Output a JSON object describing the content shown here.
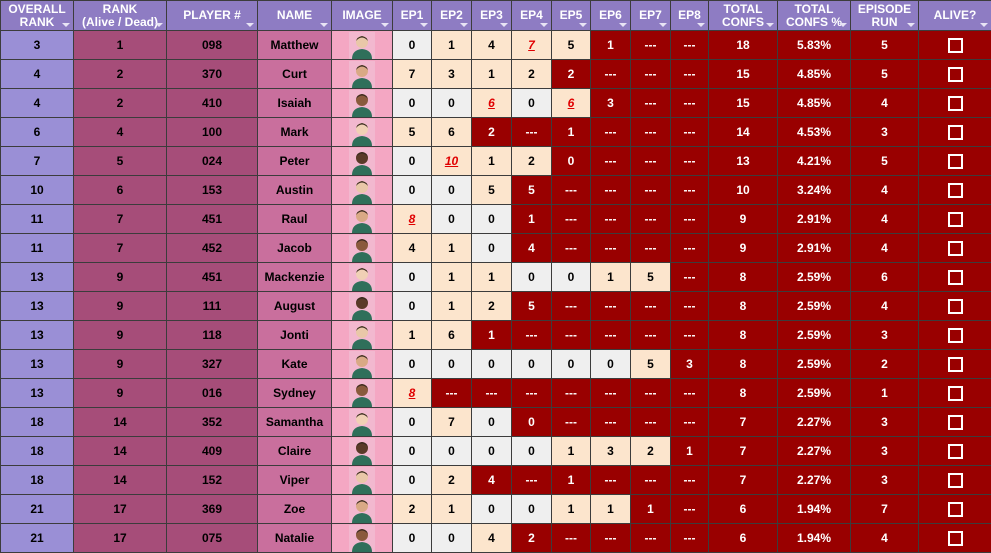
{
  "table": {
    "columns": [
      "OVERALL\nRANK",
      "RANK\n(Alive / Dead)",
      "PLAYER #",
      "NAME",
      "IMAGE",
      "EP1",
      "EP2",
      "EP3",
      "EP4",
      "EP5",
      "EP6",
      "EP7",
      "EP8",
      "TOTAL\nCONFS",
      "TOTAL\nCONFS %",
      "EPISODE\nRUN",
      "ALIVE?"
    ],
    "rows": [
      {
        "overall_rank": 3,
        "rank": 1,
        "player": "098",
        "name": "Matthew",
        "episodes": [
          0,
          1,
          4,
          7,
          5,
          1,
          "---",
          "---"
        ],
        "total_confs": 18,
        "total_confs_pct": "5.83%",
        "episode_run": 5
      },
      {
        "overall_rank": 4,
        "rank": 2,
        "player": "370",
        "name": "Curt",
        "episodes": [
          7,
          3,
          1,
          2,
          2,
          "---",
          "---",
          "---"
        ],
        "total_confs": 15,
        "total_confs_pct": "4.85%",
        "episode_run": 5
      },
      {
        "overall_rank": 4,
        "rank": 2,
        "player": "410",
        "name": "Isaiah",
        "episodes": [
          0,
          0,
          6,
          0,
          6,
          3,
          "---",
          "---"
        ],
        "total_confs": 15,
        "total_confs_pct": "4.85%",
        "episode_run": 4
      },
      {
        "overall_rank": 6,
        "rank": 4,
        "player": "100",
        "name": "Mark",
        "episodes": [
          5,
          6,
          2,
          "---",
          1,
          "---",
          "---",
          "---"
        ],
        "total_confs": 14,
        "total_confs_pct": "4.53%",
        "episode_run": 3
      },
      {
        "overall_rank": 7,
        "rank": 5,
        "player": "024",
        "name": "Peter",
        "episodes": [
          0,
          10,
          1,
          2,
          0,
          "---",
          "---",
          "---"
        ],
        "total_confs": 13,
        "total_confs_pct": "4.21%",
        "episode_run": 5
      },
      {
        "overall_rank": 10,
        "rank": 6,
        "player": "153",
        "name": "Austin",
        "episodes": [
          0,
          0,
          5,
          5,
          "---",
          "---",
          "---",
          "---"
        ],
        "total_confs": 10,
        "total_confs_pct": "3.24%",
        "episode_run": 4
      },
      {
        "overall_rank": 11,
        "rank": 7,
        "player": "451",
        "name": "Raul",
        "episodes": [
          8,
          0,
          0,
          1,
          "---",
          "---",
          "---",
          "---"
        ],
        "total_confs": 9,
        "total_confs_pct": "2.91%",
        "episode_run": 4
      },
      {
        "overall_rank": 11,
        "rank": 7,
        "player": "452",
        "name": "Jacob",
        "episodes": [
          4,
          1,
          0,
          4,
          "---",
          "---",
          "---",
          "---"
        ],
        "total_confs": 9,
        "total_confs_pct": "2.91%",
        "episode_run": 4
      },
      {
        "overall_rank": 13,
        "rank": 9,
        "player": "451",
        "name": "Mackenzie",
        "episodes": [
          0,
          1,
          1,
          0,
          0,
          1,
          5,
          "---"
        ],
        "total_confs": 8,
        "total_confs_pct": "2.59%",
        "episode_run": 6
      },
      {
        "overall_rank": 13,
        "rank": 9,
        "player": "111",
        "name": "August",
        "episodes": [
          0,
          1,
          2,
          5,
          "---",
          "---",
          "---",
          "---"
        ],
        "total_confs": 8,
        "total_confs_pct": "2.59%",
        "episode_run": 4
      },
      {
        "overall_rank": 13,
        "rank": 9,
        "player": "118",
        "name": "Jonti",
        "episodes": [
          1,
          6,
          1,
          "---",
          "---",
          "---",
          "---",
          "---"
        ],
        "total_confs": 8,
        "total_confs_pct": "2.59%",
        "episode_run": 3
      },
      {
        "overall_rank": 13,
        "rank": 9,
        "player": "327",
        "name": "Kate",
        "episodes": [
          0,
          0,
          0,
          0,
          0,
          0,
          5,
          3
        ],
        "total_confs": 8,
        "total_confs_pct": "2.59%",
        "episode_run": 2
      },
      {
        "overall_rank": 13,
        "rank": 9,
        "player": "016",
        "name": "Sydney",
        "episodes": [
          8,
          "---",
          "---",
          "---",
          "---",
          "---",
          "---",
          "---"
        ],
        "total_confs": 8,
        "total_confs_pct": "2.59%",
        "episode_run": 1
      },
      {
        "overall_rank": 18,
        "rank": 14,
        "player": "352",
        "name": "Samantha",
        "episodes": [
          0,
          7,
          0,
          0,
          "---",
          "---",
          "---",
          "---"
        ],
        "total_confs": 7,
        "total_confs_pct": "2.27%",
        "episode_run": 3
      },
      {
        "overall_rank": 18,
        "rank": 14,
        "player": "409",
        "name": "Claire",
        "episodes": [
          0,
          0,
          0,
          0,
          1,
          3,
          2,
          1
        ],
        "total_confs": 7,
        "total_confs_pct": "2.27%",
        "episode_run": 3
      },
      {
        "overall_rank": 18,
        "rank": 14,
        "player": "152",
        "name": "Viper",
        "episodes": [
          0,
          2,
          4,
          "---",
          1,
          "---",
          "---",
          "---"
        ],
        "total_confs": 7,
        "total_confs_pct": "2.27%",
        "episode_run": 3
      },
      {
        "overall_rank": 21,
        "rank": 17,
        "player": "369",
        "name": "Zoe",
        "episodes": [
          2,
          1,
          0,
          0,
          1,
          1,
          1,
          "---"
        ],
        "total_confs": 6,
        "total_confs_pct": "1.94%",
        "episode_run": 7
      },
      {
        "overall_rank": 21,
        "rank": 17,
        "player": "075",
        "name": "Natalie",
        "episodes": [
          0,
          0,
          4,
          2,
          "---",
          "---",
          "---",
          "---"
        ],
        "total_confs": 6,
        "total_confs_pct": "1.94%",
        "episode_run": 4
      }
    ]
  }
}
